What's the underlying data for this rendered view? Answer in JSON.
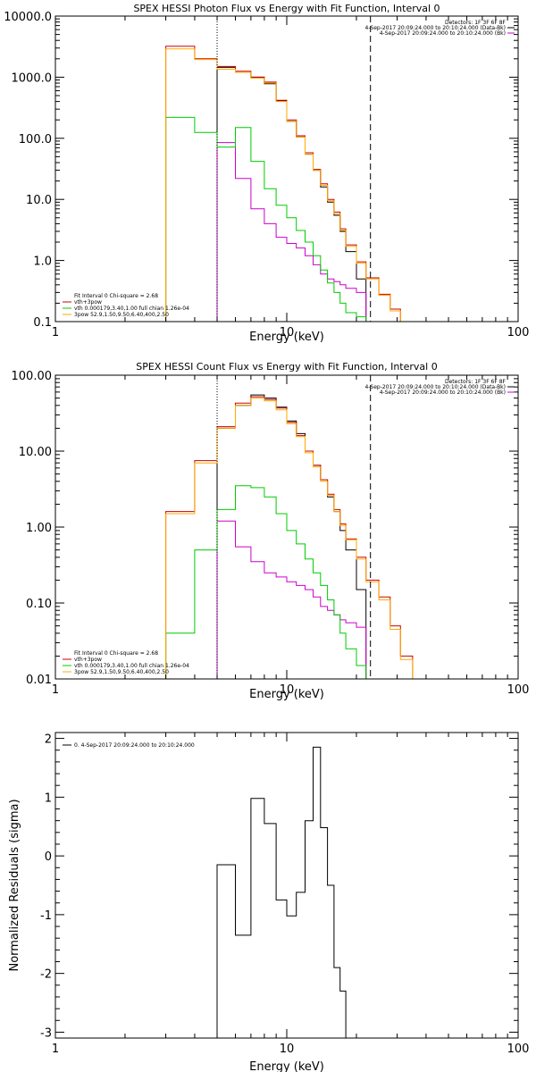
{
  "chart_data": [
    {
      "type": "line",
      "title": "SPEX HESSI Photon Flux vs Energy with Fit Function, Interval 0",
      "xlabel": "Energy (keV)",
      "ylabel": "",
      "x_scale": "log",
      "y_scale": "log",
      "xlim": [
        1,
        100
      ],
      "ylim": [
        0.1,
        10000
      ],
      "x_ticks": [
        1,
        10,
        100
      ],
      "x_tick_labels": [
        "1",
        "10",
        "100"
      ],
      "y_ticks": [
        0.1,
        1,
        10,
        100,
        1000,
        10000
      ],
      "y_tick_labels": [
        "0.1",
        "1.0",
        "10.0",
        "100.0",
        "1000.0",
        "10000.0"
      ],
      "header_lines": [
        "Detectors: 1F 3F 6F 8F",
        "4-Sep-2017 20:09:24.000 to 20:10:24.000 (Data-Bk)",
        "4-Sep-2017 20:09:24.000 to 20:10:24.000 (Bk)"
      ],
      "header_colors": [
        "#000000",
        "#000000",
        "#cc00cc"
      ],
      "legend_lines": [
        "Fit Interval 0   Chi-square = 2.68",
        "vth+3pow",
        "vth 0.000179,3.40,1.00  full chian 1.26e-04",
        "3pow 52.9,1.50,9.50,6.40,400,2.50"
      ],
      "legend_colors": [
        "#000000",
        "#cc0000",
        "#00cc00",
        "#ffaa00"
      ],
      "vlines": [
        {
          "x": 5.0,
          "style": "dotted"
        },
        {
          "x": 23.0,
          "style": "dashed"
        }
      ],
      "edges": [
        3,
        4,
        5,
        6,
        7,
        8,
        9,
        10,
        11,
        12,
        13,
        14,
        15,
        16,
        17,
        18,
        20,
        22,
        25,
        28,
        31,
        35
      ],
      "series": [
        {
          "color": "#000000",
          "values": [
            null,
            null,
            1450,
            1200,
            1000,
            780,
            410,
            190,
            105,
            55,
            30,
            16,
            9,
            5.5,
            3.0,
            1.4,
            0.5,
            null,
            null,
            null,
            null
          ]
        },
        {
          "color": "#cc00cc",
          "values": [
            null,
            null,
            85,
            22,
            7.0,
            4.0,
            2.4,
            1.9,
            1.6,
            1.2,
            0.85,
            0.6,
            0.5,
            0.45,
            0.4,
            0.35,
            0.3,
            null,
            null,
            null,
            null
          ]
        },
        {
          "color": "#cc0000",
          "values": [
            3200,
            2000,
            1500,
            1250,
            1000,
            830,
            420,
            200,
            110,
            58,
            31,
            18,
            10,
            6.2,
            3.3,
            1.8,
            0.95,
            0.52,
            0.28,
            0.16,
            0.1
          ]
        },
        {
          "color": "#00cc00",
          "values": [
            220,
            125,
            72,
            150,
            42,
            15,
            8.0,
            5.0,
            3.1,
            2.0,
            1.2,
            0.7,
            0.43,
            0.3,
            0.2,
            0.14,
            0.12,
            null,
            null,
            null,
            null
          ]
        },
        {
          "color": "#ffaa00",
          "values": [
            2900,
            1950,
            1350,
            1200,
            960,
            800,
            400,
            190,
            105,
            55,
            30,
            17,
            9.5,
            5.8,
            3.1,
            1.7,
            0.9,
            0.5,
            0.27,
            0.15,
            0.1
          ]
        }
      ]
    },
    {
      "type": "line",
      "title": "SPEX HESSI Count Flux vs Energy with Fit Function, Interval 0",
      "xlabel": "Energy (keV)",
      "ylabel": "",
      "x_scale": "log",
      "y_scale": "log",
      "xlim": [
        1,
        100
      ],
      "ylim": [
        0.01,
        100
      ],
      "x_ticks": [
        1,
        10,
        100
      ],
      "x_tick_labels": [
        "1",
        "10",
        "100"
      ],
      "y_ticks": [
        0.01,
        0.1,
        1,
        10,
        100
      ],
      "y_tick_labels": [
        "0.01",
        "0.10",
        "1.00",
        "10.00",
        "100.00"
      ],
      "header_lines": [
        "Detectors: 1F 3F 6F 8F",
        "4-Sep-2017 20:09:24.000 to 20:10:24.000 (Data-Bk)",
        "4-Sep-2017 20:09:24.000 to 20:10:24.000 (Bk)"
      ],
      "header_colors": [
        "#000000",
        "#000000",
        "#cc00cc"
      ],
      "legend_lines": [
        "Fit Interval 0   Chi-square = 2.68",
        "vth+3pow",
        "vth 0.000179,3.40,1.00  full chian 1.26e-04",
        "3pow 52.9,1.50,9.50,6.40,400,2.50"
      ],
      "legend_colors": [
        "#000000",
        "#cc0000",
        "#00cc00",
        "#ffaa00"
      ],
      "vlines": [
        {
          "x": 5.0,
          "style": "dotted"
        },
        {
          "x": 23.0,
          "style": "dashed"
        }
      ],
      "edges": [
        3,
        4,
        5,
        6,
        7,
        8,
        9,
        10,
        11,
        12,
        13,
        14,
        15,
        16,
        17,
        18,
        20,
        22,
        25,
        28,
        31,
        35,
        38
      ],
      "series": [
        {
          "color": "#000000",
          "values": [
            null,
            null,
            20,
            40,
            55,
            50,
            38,
            25,
            17,
            10,
            6.5,
            4.2,
            2.5,
            1.6,
            0.9,
            0.5,
            0.15,
            null,
            null,
            null,
            null,
            null
          ]
        },
        {
          "color": "#cc00cc",
          "values": [
            null,
            null,
            1.2,
            0.55,
            0.35,
            0.25,
            0.22,
            0.19,
            0.17,
            0.15,
            0.12,
            0.09,
            0.08,
            0.07,
            0.06,
            0.055,
            0.048,
            null,
            null,
            null,
            null,
            null
          ]
        },
        {
          "color": "#cc0000",
          "values": [
            1.6,
            7.5,
            21,
            43,
            52,
            48,
            37,
            24,
            16,
            10,
            6.5,
            4.2,
            2.7,
            1.7,
            1.1,
            0.7,
            0.4,
            0.2,
            0.12,
            0.05,
            0.02,
            0.01
          ]
        },
        {
          "color": "#00cc00",
          "values": [
            0.04,
            0.5,
            1.7,
            3.5,
            3.3,
            2.5,
            1.5,
            0.9,
            0.6,
            0.38,
            0.25,
            0.17,
            0.11,
            0.07,
            0.04,
            0.025,
            0.015,
            null,
            null,
            null,
            null,
            null
          ]
        },
        {
          "color": "#ffaa00",
          "values": [
            1.5,
            7.0,
            20,
            40,
            50,
            46,
            35,
            23,
            15.5,
            9.5,
            6.2,
            4.0,
            2.6,
            1.6,
            1.05,
            0.68,
            0.38,
            0.19,
            0.11,
            0.045,
            0.018,
            0.01
          ]
        }
      ]
    },
    {
      "type": "line",
      "title": "",
      "xlabel": "Energy (keV)",
      "ylabel": "Normalized Residuals (sigma)",
      "x_scale": "log",
      "y_scale": "linear",
      "xlim": [
        1,
        100
      ],
      "ylim": [
        -3.1,
        2.1
      ],
      "x_ticks": [
        1,
        10,
        100
      ],
      "x_tick_labels": [
        "1",
        "10",
        "100"
      ],
      "y_ticks": [
        -3,
        -2,
        -1,
        0,
        1,
        2
      ],
      "y_tick_labels": [
        "-3",
        "-2",
        "-1",
        "0",
        "1",
        "2"
      ],
      "header_lines": [],
      "header_colors": [],
      "legend_lines": [
        "0.  4-Sep-2017 20:09:24.000 to 20:10:24.000"
      ],
      "legend_colors": [
        "#000000"
      ],
      "legend_position": "top-left",
      "vlines": [],
      "edges": [
        5,
        6,
        7,
        8,
        9,
        10,
        11,
        12,
        13,
        14,
        15,
        16,
        17,
        18,
        20,
        22
      ],
      "series": [
        {
          "color": "#000000",
          "values": [
            -0.15,
            -1.35,
            0.98,
            0.55,
            -0.75,
            -1.02,
            -0.62,
            0.6,
            1.85,
            0.48,
            -0.5,
            -1.9,
            -2.3,
            -3.1,
            -3.1
          ]
        }
      ]
    }
  ]
}
